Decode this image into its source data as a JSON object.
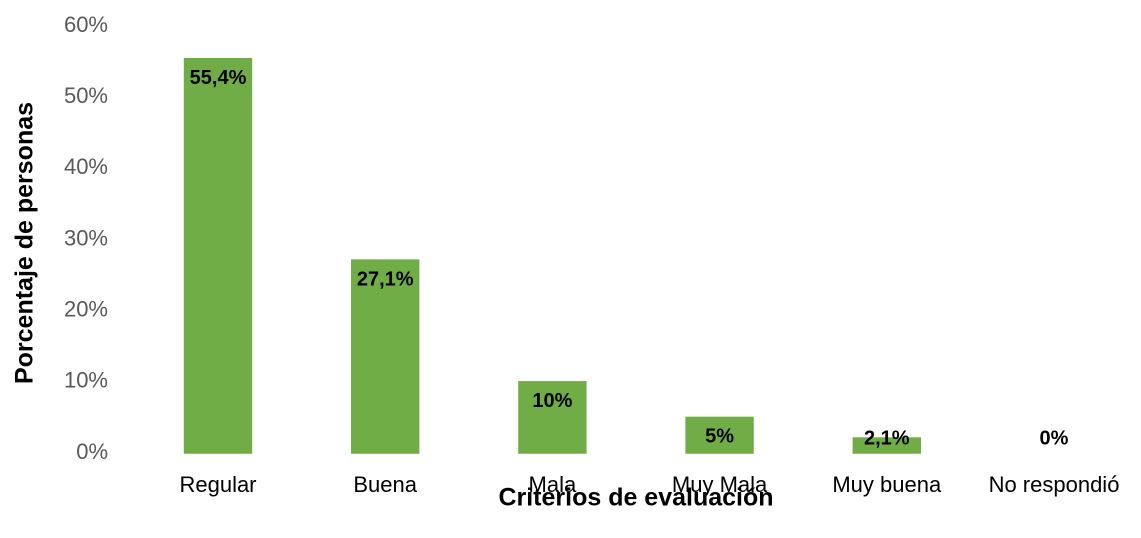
{
  "chart_data": {
    "type": "bar",
    "categories": [
      "Regular",
      "Buena",
      "Mala",
      "Muy Mala",
      "Muy buena",
      "No respondió"
    ],
    "values": [
      55.4,
      27.1,
      10,
      5,
      2.1,
      0
    ],
    "value_labels": [
      "55,4%",
      "27,1%",
      "10%",
      "5%",
      "2,1%",
      "0%"
    ],
    "color": "#70ad47",
    "xlabel": "Criterios de evaluación",
    "ylabel": "Porcentaje de personas",
    "ylim": [
      0,
      60
    ],
    "yticks": [
      {
        "value": 0,
        "label": "0%"
      },
      {
        "value": 10,
        "label": "10%"
      },
      {
        "value": 20,
        "label": "20%"
      },
      {
        "value": 30,
        "label": "30%"
      },
      {
        "value": 40,
        "label": "40%"
      },
      {
        "value": 50,
        "label": "50%"
      },
      {
        "value": 60,
        "label": "60%"
      }
    ],
    "grid": false
  }
}
